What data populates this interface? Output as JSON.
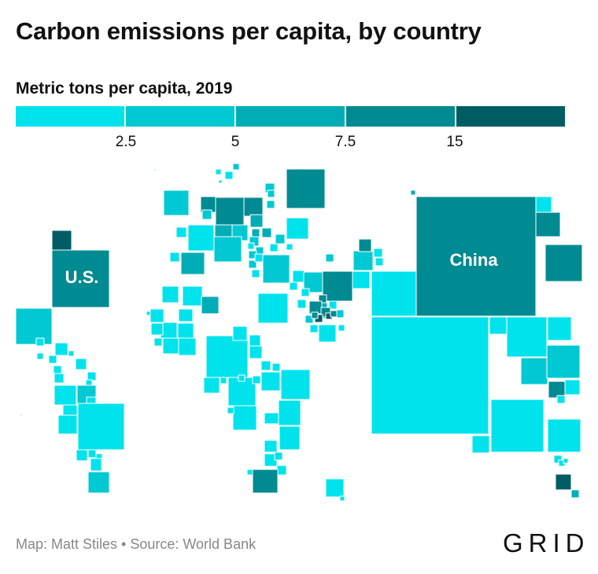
{
  "title": "Carbon emissions per capita, by country",
  "legend": {
    "title": "Metric tons per capita, 2019",
    "ticks": [
      "2.5",
      "5",
      "7.5",
      "15"
    ],
    "colors": [
      "#00e3ec",
      "#00c9d3",
      "#00adb6",
      "#008a91",
      "#005d63"
    ]
  },
  "labels": {
    "us": "U.S.",
    "china": "China"
  },
  "footer": {
    "credit": "Map: Matt Stiles • Source: World Bank",
    "logo": "GRID"
  }
}
